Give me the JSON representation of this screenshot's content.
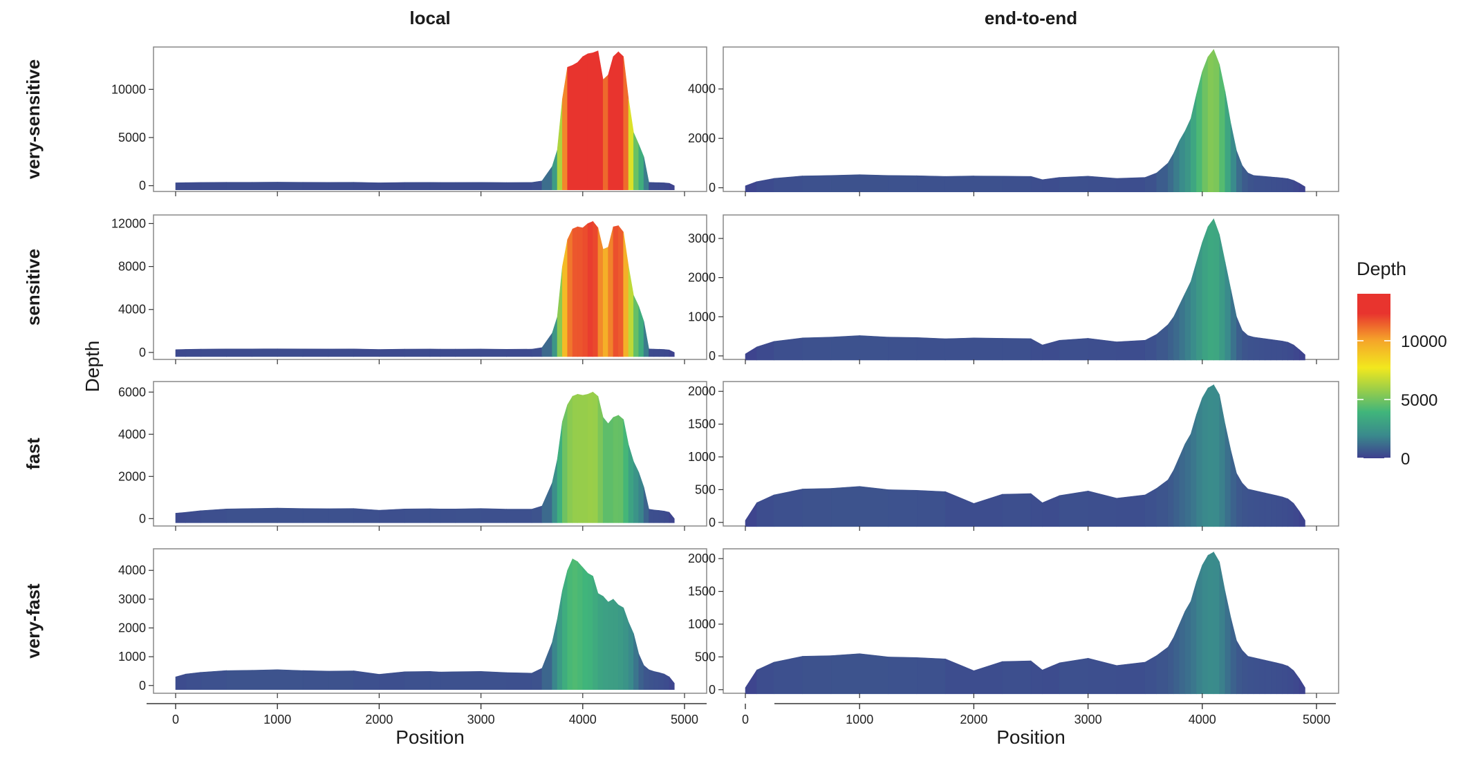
{
  "chart_data": {
    "type": "area",
    "facet_columns": [
      "local",
      "end-to-end"
    ],
    "facet_rows": [
      "very-sensitive",
      "sensitive",
      "fast",
      "very-fast"
    ],
    "xlabel": "Position",
    "ylabel": "Depth",
    "xlim": [
      0,
      5000
    ],
    "x_ticks": [
      0,
      1000,
      2000,
      3000,
      4000,
      5000
    ],
    "x": [
      0,
      100,
      250,
      500,
      750,
      1000,
      1250,
      1500,
      1750,
      2000,
      2250,
      2500,
      2600,
      2750,
      3000,
      3250,
      3500,
      3600,
      3700,
      3750,
      3800,
      3850,
      3900,
      3950,
      4000,
      4050,
      4100,
      4150,
      4200,
      4250,
      4300,
      4350,
      4400,
      4450,
      4500,
      4550,
      4600,
      4650,
      4700,
      4750,
      4800,
      4850,
      4900
    ],
    "grid": false,
    "legend": {
      "title": "Depth",
      "position": "right",
      "ticks": [
        0,
        5000,
        10000
      ],
      "range": [
        0,
        14000
      ],
      "colors": [
        "#3e3f8e",
        "#3a8a8c",
        "#40b57b",
        "#9ccf48",
        "#f2e81e",
        "#f5a32a",
        "#e8342e"
      ]
    },
    "panels": [
      {
        "row": "very-sensitive",
        "column": "local",
        "yticks": [
          0,
          5000,
          10000
        ],
        "ylim": [
          -600,
          14400
        ],
        "values": [
          300,
          320,
          340,
          360,
          360,
          370,
          360,
          350,
          360,
          300,
          340,
          350,
          340,
          340,
          350,
          330,
          340,
          500,
          2000,
          3700,
          9000,
          12300,
          12500,
          12800,
          13400,
          13700,
          13800,
          14000,
          11000,
          11500,
          13400,
          13900,
          13400,
          9000,
          5500,
          4300,
          3000,
          350,
          330,
          320,
          300,
          250,
          0
        ]
      },
      {
        "row": "very-sensitive",
        "column": "end-to-end",
        "yticks": [
          0,
          2000,
          4000
        ],
        "ylim": [
          -150,
          5700
        ],
        "values": [
          80,
          250,
          380,
          480,
          500,
          530,
          500,
          490,
          460,
          480,
          470,
          460,
          330,
          420,
          470,
          380,
          420,
          600,
          1000,
          1400,
          1900,
          2300,
          2800,
          3800,
          4700,
          5300,
          5600,
          5000,
          3900,
          2600,
          1500,
          900,
          600,
          500,
          480,
          460,
          440,
          420,
          400,
          370,
          300,
          180,
          40
        ]
      },
      {
        "row": "sensitive",
        "column": "local",
        "yticks": [
          0,
          4000,
          8000,
          12000
        ],
        "ylim": [
          -650,
          12800
        ],
        "values": [
          260,
          290,
          310,
          330,
          330,
          340,
          330,
          320,
          330,
          280,
          310,
          320,
          310,
          310,
          320,
          300,
          310,
          450,
          1800,
          3300,
          8000,
          10500,
          11500,
          11700,
          11600,
          12000,
          12200,
          11600,
          9600,
          9800,
          11700,
          11800,
          11200,
          8000,
          5300,
          4300,
          2900,
          330,
          310,
          300,
          280,
          230,
          0
        ]
      },
      {
        "row": "sensitive",
        "column": "end-to-end",
        "yticks": [
          0,
          1000,
          2000,
          3000
        ],
        "ylim": [
          -90,
          3600
        ],
        "values": [
          50,
          230,
          370,
          460,
          480,
          520,
          480,
          470,
          440,
          460,
          450,
          440,
          280,
          400,
          450,
          360,
          400,
          550,
          800,
          1000,
          1300,
          1600,
          1900,
          2400,
          2900,
          3300,
          3500,
          3100,
          2400,
          1700,
          1000,
          650,
          520,
          480,
          460,
          440,
          420,
          400,
          380,
          350,
          280,
          160,
          30
        ]
      },
      {
        "row": "fast",
        "column": "local",
        "yticks": [
          0,
          2000,
          4000,
          6000
        ],
        "ylim": [
          -350,
          6500
        ],
        "values": [
          260,
          300,
          380,
          460,
          480,
          500,
          480,
          470,
          480,
          400,
          460,
          470,
          460,
          460,
          480,
          450,
          450,
          600,
          1700,
          2800,
          4600,
          5400,
          5800,
          5900,
          5850,
          5900,
          6000,
          5800,
          4800,
          4500,
          4800,
          4900,
          4700,
          3500,
          2700,
          2200,
          1500,
          450,
          410,
          390,
          360,
          300,
          0
        ]
      },
      {
        "row": "fast",
        "column": "end-to-end",
        "yticks": [
          0,
          500,
          1000,
          1500,
          2000
        ],
        "ylim": [
          -55,
          2150
        ],
        "values": [
          30,
          300,
          420,
          510,
          520,
          550,
          500,
          490,
          470,
          290,
          430,
          440,
          300,
          410,
          480,
          370,
          420,
          520,
          650,
          800,
          1000,
          1200,
          1350,
          1650,
          1900,
          2050,
          2100,
          1950,
          1500,
          1100,
          750,
          600,
          510,
          490,
          470,
          450,
          430,
          410,
          390,
          360,
          290,
          170,
          30
        ]
      },
      {
        "row": "very-fast",
        "column": "local",
        "yticks": [
          0,
          1000,
          2000,
          3000,
          4000
        ],
        "ylim": [
          -270,
          4750
        ],
        "values": [
          300,
          400,
          460,
          520,
          530,
          550,
          520,
          500,
          510,
          390,
          480,
          490,
          470,
          480,
          490,
          450,
          430,
          600,
          1500,
          2300,
          3300,
          4000,
          4400,
          4300,
          4100,
          3900,
          3800,
          3200,
          3100,
          2900,
          3000,
          2800,
          2700,
          2200,
          1800,
          1100,
          700,
          550,
          490,
          450,
          400,
          300,
          80
        ]
      },
      {
        "row": "very-fast",
        "column": "end-to-end",
        "yticks": [
          0,
          500,
          1000,
          1500,
          2000
        ],
        "ylim": [
          -55,
          2150
        ],
        "values": [
          30,
          300,
          420,
          510,
          520,
          550,
          500,
          490,
          470,
          290,
          430,
          440,
          300,
          410,
          480,
          370,
          420,
          520,
          650,
          800,
          1000,
          1200,
          1350,
          1650,
          1900,
          2050,
          2100,
          1950,
          1500,
          1100,
          750,
          600,
          510,
          490,
          470,
          450,
          430,
          410,
          390,
          360,
          290,
          170,
          30
        ]
      }
    ]
  }
}
